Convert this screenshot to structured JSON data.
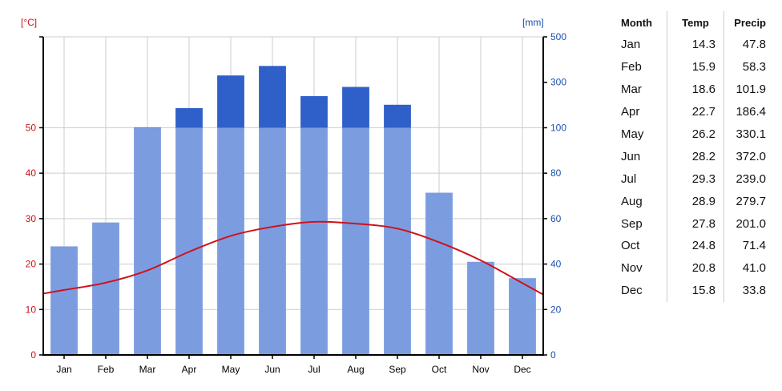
{
  "chart_data": {
    "type": "bar",
    "categories": [
      "Jan",
      "Feb",
      "Mar",
      "Apr",
      "May",
      "Jun",
      "Jul",
      "Aug",
      "Sep",
      "Oct",
      "Nov",
      "Dec"
    ],
    "series": [
      {
        "name": "Precip",
        "type": "bar",
        "axis": "right",
        "unit": "[mm]",
        "values": [
          47.8,
          58.3,
          101.9,
          186.4,
          330.1,
          372.0,
          239.0,
          279.7,
          201.0,
          71.4,
          41.0,
          33.8
        ],
        "color": "#7b9de0",
        "overflow_color": "#2f5fc8"
      },
      {
        "name": "Temp",
        "type": "line",
        "axis": "left",
        "unit": "[°C]",
        "values": [
          14.3,
          15.9,
          18.6,
          22.7,
          26.2,
          28.2,
          29.3,
          28.9,
          27.8,
          24.8,
          20.8,
          15.8
        ],
        "color": "#d0101a"
      }
    ],
    "left_axis": {
      "label": "[°C]",
      "ylim": [
        0,
        70
      ],
      "ticks": [
        0,
        10,
        20,
        30,
        40,
        50
      ],
      "color": "#d0101a"
    },
    "right_axis": {
      "label": "[mm]",
      "ylim": [
        0,
        500
      ],
      "ticks": [
        0,
        20,
        40,
        60,
        80,
        100,
        300,
        500
      ],
      "color": "#1a4fb0",
      "scale_break": {
        "at": 100,
        "lower_range": [
          0,
          100
        ],
        "upper_range": [
          100,
          500
        ]
      }
    },
    "grid": true
  },
  "table": {
    "headers": [
      "Month",
      "Temp",
      "Precip"
    ],
    "rows": [
      [
        "Jan",
        "14.3",
        "47.8"
      ],
      [
        "Feb",
        "15.9",
        "58.3"
      ],
      [
        "Mar",
        "18.6",
        "101.9"
      ],
      [
        "Apr",
        "22.7",
        "186.4"
      ],
      [
        "May",
        "26.2",
        "330.1"
      ],
      [
        "Jun",
        "28.2",
        "372.0"
      ],
      [
        "Jul",
        "29.3",
        "239.0"
      ],
      [
        "Aug",
        "28.9",
        "279.7"
      ],
      [
        "Sep",
        "27.8",
        "201.0"
      ],
      [
        "Oct",
        "24.8",
        "71.4"
      ],
      [
        "Nov",
        "20.8",
        "41.0"
      ],
      [
        "Dec",
        "15.8",
        "33.8"
      ]
    ]
  }
}
